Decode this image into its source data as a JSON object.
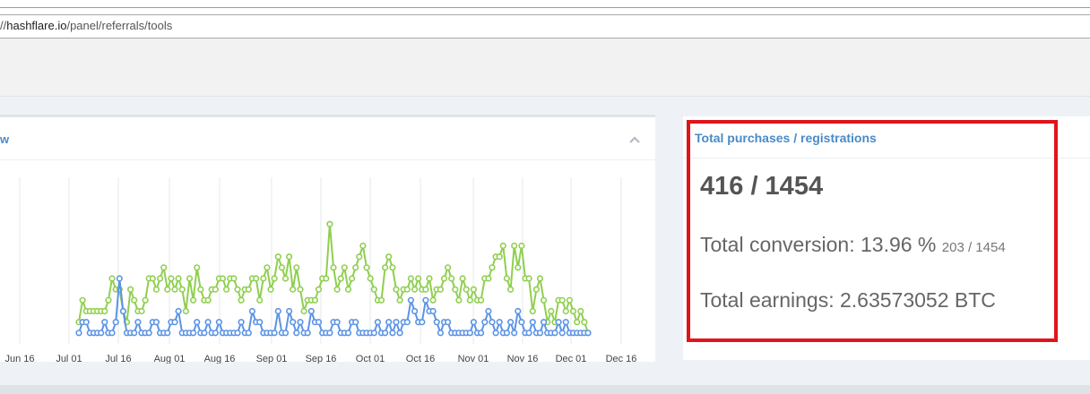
{
  "browser": {
    "url_prefix": "//",
    "url_host": "hashflare.io",
    "url_path": "/panel/referrals/tools"
  },
  "left_panel": {
    "title_fragment": "w",
    "collapse_icon": "chevron-up-icon"
  },
  "right_panel": {
    "title": "Total purchases / registrations",
    "total": "416 / 1454",
    "conversion_label": "Total conversion: 13.96 %",
    "conversion_detail": "203 / 1454",
    "earnings_label": "Total earnings: 2.63573052 BTC"
  },
  "colors": {
    "accent_blue": "#4a8ac6",
    "series_green": "#8fcf4f",
    "series_blue": "#5b93e6",
    "highlight_red": "#e1141c"
  },
  "chart_data": {
    "type": "line",
    "x_tick_labels": [
      "Jun 16",
      "Jul 01",
      "Jul 16",
      "Aug 01",
      "Aug 16",
      "Sep 01",
      "Sep 16",
      "Oct 01",
      "Oct 16",
      "Nov 01",
      "Nov 16",
      "Dec 01",
      "Dec 16"
    ],
    "series": [
      {
        "color": "#8fcf4f",
        "values": [
          2,
          4,
          3,
          3,
          3,
          3,
          3,
          3,
          4,
          6,
          5,
          5,
          3,
          2,
          5,
          4,
          3,
          3,
          4,
          6,
          6,
          5,
          6,
          7,
          5,
          6,
          5,
          6,
          5,
          3,
          6,
          4,
          7,
          5,
          4,
          4,
          5,
          5,
          6,
          6,
          5,
          6,
          6,
          5,
          4,
          5,
          5,
          6,
          6,
          4,
          6,
          7,
          5,
          6,
          8,
          7,
          6,
          8,
          5,
          7,
          5,
          3,
          4,
          4,
          4,
          5,
          6,
          6,
          11,
          7,
          5,
          6,
          7,
          5,
          6,
          7,
          8,
          9,
          7,
          6,
          5,
          4,
          4,
          7,
          8,
          7,
          5,
          4,
          5,
          5,
          6,
          5,
          6,
          5,
          5,
          6,
          4,
          5,
          5,
          6,
          7,
          6,
          5,
          4,
          6,
          5,
          4,
          5,
          4,
          4,
          6,
          6,
          7,
          8,
          8,
          9,
          6,
          5,
          9,
          7,
          9,
          6,
          6,
          3,
          5,
          6,
          4,
          2,
          3,
          2,
          4,
          4,
          3,
          4,
          3,
          2,
          3,
          2,
          1
        ]
      },
      {
        "color": "#5b93e6",
        "values": [
          1,
          2,
          2,
          1,
          1,
          1,
          1,
          2,
          1,
          1,
          2,
          6,
          3,
          1,
          1,
          1,
          2,
          1,
          1,
          1,
          2,
          2,
          1,
          1,
          1,
          2,
          2,
          3,
          1,
          1,
          1,
          1,
          2,
          1,
          1,
          2,
          1,
          1,
          2,
          1,
          1,
          1,
          1,
          1,
          2,
          1,
          1,
          3,
          2,
          2,
          1,
          1,
          1,
          1,
          3,
          1,
          1,
          3,
          2,
          1,
          2,
          1,
          1,
          3,
          2,
          2,
          1,
          1,
          1,
          2,
          2,
          1,
          1,
          1,
          2,
          2,
          1,
          1,
          1,
          1,
          1,
          2,
          1,
          1,
          2,
          1,
          2,
          1,
          2,
          2,
          4,
          3,
          2,
          2,
          4,
          3,
          3,
          2,
          1,
          2,
          2,
          1,
          1,
          1,
          1,
          1,
          1,
          2,
          1,
          1,
          2,
          3,
          2,
          1,
          2,
          1,
          1,
          2,
          1,
          3,
          2,
          1,
          1,
          2,
          1,
          1,
          2,
          1,
          1,
          1,
          2,
          1,
          2,
          1,
          1,
          1,
          1,
          1,
          1
        ]
      }
    ]
  }
}
